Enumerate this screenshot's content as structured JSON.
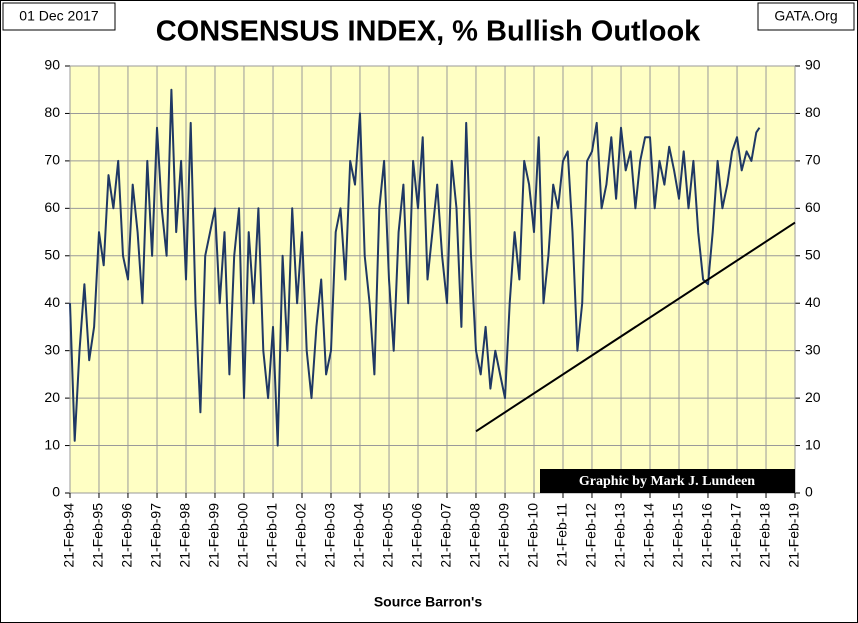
{
  "chart_data": {
    "type": "line",
    "title": "CONSENSUS INDEX,  % Bullish Outlook",
    "date_label": "01 Dec 2017",
    "site_label": "GATA.Org",
    "credit": "Graphic by Mark J. Lundeen",
    "xlabel": "Source Barron's",
    "color": "#1f3864",
    "grid": true,
    "x": [
      "1994-02-21",
      "1994-04-21",
      "1994-06-21",
      "1994-08-21",
      "1994-10-21",
      "1994-12-21",
      "1995-02-21",
      "1995-04-21",
      "1995-06-21",
      "1995-08-21",
      "1995-10-21",
      "1995-12-21",
      "1996-02-21",
      "1996-04-21",
      "1996-06-21",
      "1996-08-21",
      "1996-10-21",
      "1996-12-21",
      "1997-02-21",
      "1997-04-21",
      "1997-06-21",
      "1997-08-21",
      "1997-10-21",
      "1997-12-21",
      "1998-02-21",
      "1998-04-21",
      "1998-06-21",
      "1998-08-21",
      "1998-10-21",
      "1998-12-21",
      "1999-02-21",
      "1999-04-21",
      "1999-06-21",
      "1999-08-21",
      "1999-10-21",
      "1999-12-21",
      "2000-02-21",
      "2000-04-21",
      "2000-06-21",
      "2000-08-21",
      "2000-10-21",
      "2000-12-21",
      "2001-02-21",
      "2001-04-21",
      "2001-06-21",
      "2001-08-21",
      "2001-10-21",
      "2001-12-21",
      "2002-02-21",
      "2002-04-21",
      "2002-06-21",
      "2002-08-21",
      "2002-10-21",
      "2002-12-21",
      "2003-02-21",
      "2003-04-21",
      "2003-06-21",
      "2003-08-21",
      "2003-10-21",
      "2003-12-21",
      "2004-02-21",
      "2004-04-21",
      "2004-06-21",
      "2004-08-21",
      "2004-10-21",
      "2004-12-21",
      "2005-02-21",
      "2005-04-21",
      "2005-06-21",
      "2005-08-21",
      "2005-10-21",
      "2005-12-21",
      "2006-02-21",
      "2006-04-21",
      "2006-06-21",
      "2006-08-21",
      "2006-10-21",
      "2006-12-21",
      "2007-02-21",
      "2007-04-21",
      "2007-06-21",
      "2007-08-21",
      "2007-10-21",
      "2007-12-21",
      "2008-02-21",
      "2008-04-21",
      "2008-06-21",
      "2008-08-21",
      "2008-10-21",
      "2008-12-21",
      "2009-02-21",
      "2009-04-21",
      "2009-06-21",
      "2009-08-21",
      "2009-10-21",
      "2009-12-21",
      "2010-02-21",
      "2010-04-21",
      "2010-06-21",
      "2010-08-21",
      "2010-10-21",
      "2010-12-21",
      "2011-02-21",
      "2011-04-21",
      "2011-06-21",
      "2011-08-21",
      "2011-10-21",
      "2011-12-21",
      "2012-02-21",
      "2012-04-21",
      "2012-06-21",
      "2012-08-21",
      "2012-10-21",
      "2012-12-21",
      "2013-02-21",
      "2013-04-21",
      "2013-06-21",
      "2013-08-21",
      "2013-10-21",
      "2013-12-21",
      "2014-02-21",
      "2014-04-21",
      "2014-06-21",
      "2014-08-21",
      "2014-10-21",
      "2014-12-21",
      "2015-02-21",
      "2015-04-21",
      "2015-06-21",
      "2015-08-21",
      "2015-10-21",
      "2015-12-21",
      "2016-02-21",
      "2016-04-21",
      "2016-06-21",
      "2016-08-21",
      "2016-10-21",
      "2016-12-21",
      "2017-02-21",
      "2017-04-21",
      "2017-06-21",
      "2017-08-21",
      "2017-10-21",
      "2017-12-01"
    ],
    "values": [
      40,
      11,
      30,
      44,
      28,
      35,
      55,
      48,
      67,
      60,
      70,
      50,
      45,
      65,
      55,
      40,
      70,
      50,
      77,
      60,
      50,
      85,
      55,
      70,
      45,
      78,
      40,
      17,
      50,
      55,
      60,
      40,
      55,
      25,
      50,
      60,
      20,
      55,
      40,
      60,
      30,
      20,
      35,
      10,
      50,
      30,
      60,
      40,
      55,
      30,
      20,
      35,
      45,
      25,
      30,
      55,
      60,
      45,
      70,
      65,
      80,
      50,
      40,
      25,
      60,
      70,
      45,
      30,
      55,
      65,
      40,
      70,
      60,
      75,
      45,
      55,
      65,
      50,
      40,
      70,
      60,
      35,
      78,
      50,
      30,
      25,
      35,
      22,
      30,
      25,
      20,
      40,
      55,
      45,
      70,
      65,
      55,
      75,
      40,
      50,
      65,
      60,
      70,
      72,
      55,
      30,
      40,
      70,
      72,
      78,
      60,
      65,
      75,
      62,
      77,
      68,
      72,
      60,
      70,
      75,
      75,
      60,
      70,
      65,
      73,
      68,
      62,
      72,
      60,
      70,
      55,
      45,
      44,
      55,
      70,
      60,
      65,
      72,
      75,
      68,
      72,
      70,
      76,
      77
    ],
    "trendline": {
      "x": [
        "2008-02-21",
        "2019-02-21"
      ],
      "values": [
        13,
        57
      ]
    },
    "xlim": [
      "1994-02-21",
      "2019-02-21"
    ],
    "xticks": [
      {
        "value": "1994-02-21",
        "label": "21-Feb-94"
      },
      {
        "value": "1995-02-21",
        "label": "21-Feb-95"
      },
      {
        "value": "1996-02-21",
        "label": "21-Feb-96"
      },
      {
        "value": "1997-02-21",
        "label": "21-Feb-97"
      },
      {
        "value": "1998-02-21",
        "label": "21-Feb-98"
      },
      {
        "value": "1999-02-21",
        "label": "21-Feb-99"
      },
      {
        "value": "2000-02-21",
        "label": "21-Feb-00"
      },
      {
        "value": "2001-02-21",
        "label": "21-Feb-01"
      },
      {
        "value": "2002-02-21",
        "label": "21-Feb-02"
      },
      {
        "value": "2003-02-21",
        "label": "21-Feb-03"
      },
      {
        "value": "2004-02-21",
        "label": "21-Feb-04"
      },
      {
        "value": "2005-02-21",
        "label": "21-Feb-05"
      },
      {
        "value": "2006-02-21",
        "label": "21-Feb-06"
      },
      {
        "value": "2007-02-21",
        "label": "21-Feb-07"
      },
      {
        "value": "2008-02-21",
        "label": "21-Feb-08"
      },
      {
        "value": "2009-02-21",
        "label": "21-Feb-09"
      },
      {
        "value": "2010-02-21",
        "label": "21-Feb-10"
      },
      {
        "value": "2011-02-21",
        "label": "21-Feb-11"
      },
      {
        "value": "2012-02-21",
        "label": "21-Feb-12"
      },
      {
        "value": "2013-02-21",
        "label": "21-Feb-13"
      },
      {
        "value": "2014-02-21",
        "label": "21-Feb-14"
      },
      {
        "value": "2015-02-21",
        "label": "21-Feb-15"
      },
      {
        "value": "2016-02-21",
        "label": "21-Feb-16"
      },
      {
        "value": "2017-02-21",
        "label": "21-Feb-17"
      },
      {
        "value": "2018-02-21",
        "label": "21-Feb-18"
      },
      {
        "value": "2019-02-21",
        "label": "21-Feb-19"
      }
    ],
    "ylim": [
      0,
      90
    ],
    "yticks": [
      0,
      10,
      20,
      30,
      40,
      50,
      60,
      70,
      80,
      90
    ],
    "y2lim": [
      0,
      90
    ],
    "y2ticks": [
      0,
      10,
      20,
      30,
      40,
      50,
      60,
      70,
      80,
      90
    ]
  }
}
